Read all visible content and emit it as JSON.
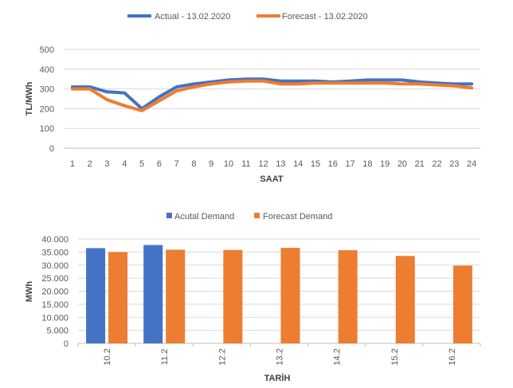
{
  "chart_data": [
    {
      "type": "line",
      "title": "",
      "xlabel": "SAAT",
      "ylabel": "TL/MWh",
      "ylim": [
        0,
        500
      ],
      "yticks": [
        "0",
        "100",
        "200",
        "300",
        "400",
        "500"
      ],
      "grid": true,
      "legend_position": "top",
      "x": [
        1,
        2,
        3,
        4,
        5,
        6,
        7,
        8,
        9,
        10,
        11,
        12,
        13,
        14,
        15,
        16,
        17,
        18,
        19,
        20,
        21,
        22,
        23,
        24
      ],
      "series": [
        {
          "name": "Actual - 13.02.2020",
          "color": "#4472c4",
          "values": [
            310,
            310,
            285,
            280,
            200,
            260,
            310,
            325,
            335,
            345,
            350,
            350,
            340,
            340,
            340,
            335,
            340,
            345,
            345,
            345,
            335,
            330,
            325,
            325
          ]
        },
        {
          "name": "Forecast - 13.02.2020",
          "color": "#ed7d31",
          "values": [
            300,
            300,
            245,
            215,
            190,
            240,
            290,
            310,
            325,
            335,
            340,
            340,
            325,
            325,
            330,
            330,
            330,
            330,
            330,
            325,
            325,
            320,
            315,
            305
          ]
        }
      ]
    },
    {
      "type": "bar",
      "title": "",
      "xlabel": "TARİH",
      "ylabel": "MWh",
      "ylim": [
        0,
        40000
      ],
      "yticks": [
        "0",
        "5.000",
        "10.000",
        "15.000",
        "20.000",
        "25.000",
        "30.000",
        "35.000",
        "40.000"
      ],
      "grid": true,
      "legend_position": "top",
      "categories": [
        "10.2",
        "11.2",
        "12.2",
        "13.2",
        "14.2",
        "15.2",
        "16.2"
      ],
      "series": [
        {
          "name": "Acutal Demand",
          "color": "#4472c4",
          "values": [
            36500,
            37700,
            null,
            null,
            null,
            null,
            null
          ]
        },
        {
          "name": "Forecast Demand",
          "color": "#ed7d31",
          "values": [
            35000,
            35900,
            35800,
            36600,
            35700,
            33500,
            29800
          ]
        }
      ]
    }
  ]
}
